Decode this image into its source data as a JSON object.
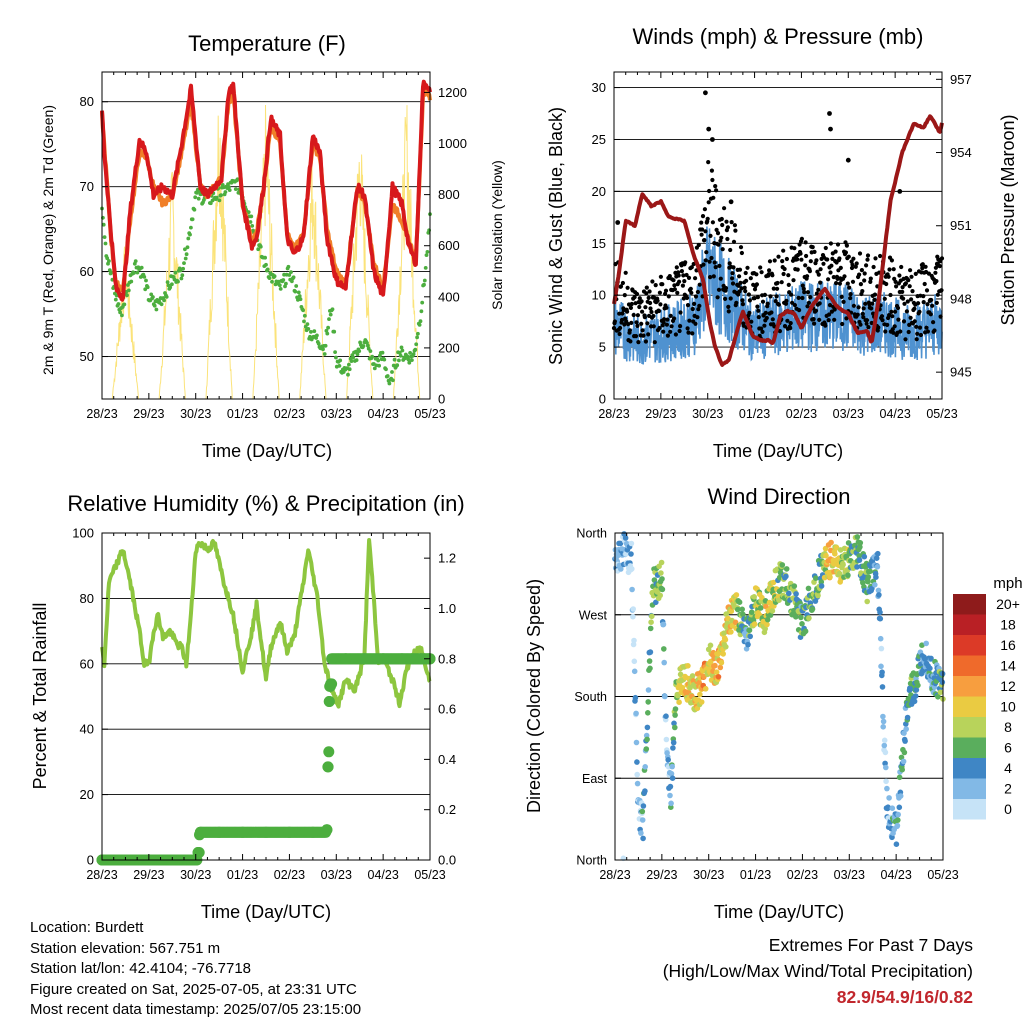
{
  "colors": {
    "temp2m": "#d7191c",
    "temp9m": "#f07f28",
    "dew": "#4cae3e",
    "solar": "#fbe37a",
    "wind": "#4f92d0",
    "gust": "#000000",
    "pressure": "#9b1717",
    "rh": "#8dc63f",
    "precip": "#4cae3e",
    "extremes": "#c1272d"
  },
  "x_ticks": [
    "28/23",
    "29/23",
    "30/23",
    "01/23",
    "02/23",
    "03/23",
    "04/23",
    "05/23"
  ],
  "x_label": "Time (Day/UTC)",
  "info": {
    "location": "Location: Burdett",
    "elevation": "Station elevation: 567.751 m",
    "latlon": "Station lat/lon: 42.4104; -76.7718",
    "created": "Figure created on Sat, 2025-07-05, at 23:31 UTC",
    "recent": "Most recent data timestamp: 2025/07/05 23:15:00"
  },
  "extremes": {
    "title": "Extremes For Past 7 Days",
    "subtitle": "(High/Low/Max Wind/Total Precipitation)",
    "values": "82.9/54.9/16/0.82"
  },
  "chart_data": [
    {
      "type": "line",
      "title": "Temperature (F)",
      "xlabel": "Time (Day/UTC)",
      "ylabel": "2m & 9m T (Red, Orange) & 2m Td (Green)",
      "ylabel_right": "Solar Insolation (Yellow)",
      "ylim": [
        45,
        83.5
      ],
      "yticks": [
        50,
        60,
        70,
        80
      ],
      "ylim_right": [
        0,
        1280
      ],
      "yticks_right": [
        0,
        200,
        400,
        600,
        800,
        1000,
        1200
      ],
      "x_days": [
        0,
        7
      ],
      "grid": true,
      "series": [
        {
          "key": "temp2m",
          "x": [
            0,
            0.05,
            0.2,
            0.3,
            0.45,
            0.6,
            0.8,
            0.95,
            1.1,
            1.3,
            1.5,
            1.7,
            1.9,
            2.1,
            2.25,
            2.4,
            2.55,
            2.7,
            2.8,
            3.0,
            3.2,
            3.3,
            3.45,
            3.6,
            3.8,
            3.95,
            4.1,
            4.3,
            4.5,
            4.65,
            4.8,
            5.0,
            5.2,
            5.3,
            5.45,
            5.6,
            5.8,
            6.0,
            6.2,
            6.4,
            6.55,
            6.7,
            6.8,
            6.85,
            6.95,
            7.0
          ],
          "y": [
            79,
            74,
            64,
            58,
            57,
            67,
            75.5,
            74,
            69,
            70,
            69,
            75,
            81.5,
            70,
            69,
            70,
            71,
            81,
            82,
            68,
            63,
            64,
            70,
            78,
            76,
            64,
            62,
            64,
            76,
            74,
            64,
            59,
            58,
            63,
            70,
            69,
            60,
            57,
            70,
            68,
            63,
            61,
            75,
            82,
            82,
            81
          ]
        },
        {
          "key": "temp9m",
          "x": [
            0,
            0.2,
            0.3,
            0.45,
            0.6,
            0.8,
            0.95,
            1.1,
            1.3,
            1.5,
            1.7,
            1.9,
            2.1,
            2.25,
            2.4,
            2.55,
            2.7,
            2.8,
            3.0,
            3.2,
            3.3,
            3.45,
            3.6,
            3.8,
            3.95,
            4.1,
            4.3,
            4.5,
            4.65,
            4.8,
            5.0,
            5.2,
            5.3,
            5.45,
            5.6,
            5.8,
            6.0,
            6.2,
            6.4,
            6.55,
            6.7,
            6.8,
            6.85,
            6.95,
            7.0
          ],
          "y": [
            78.5,
            63.5,
            58.5,
            58,
            66,
            74,
            73.5,
            70,
            68,
            69,
            74,
            80,
            70,
            69,
            70,
            71,
            80,
            81,
            68,
            63.5,
            64.5,
            70,
            77,
            75.5,
            64.5,
            62.5,
            64.5,
            75,
            73.5,
            65,
            60,
            58.5,
            63,
            69.5,
            68.5,
            61,
            58,
            68,
            66,
            63.5,
            61.5,
            74,
            81,
            81.5,
            80
          ]
        },
        {
          "key": "dew",
          "x": [
            0,
            0.1,
            0.25,
            0.4,
            0.55,
            0.7,
            0.85,
            1.0,
            1.15,
            1.3,
            1.5,
            1.7,
            1.85,
            2.0,
            2.3,
            2.6,
            2.75,
            2.85,
            3.0,
            3.2,
            3.4,
            3.6,
            3.8,
            4.0,
            4.2,
            4.4,
            4.6,
            4.75,
            4.9,
            5.0,
            5.2,
            5.4,
            5.6,
            5.8,
            6.0,
            6.15,
            6.25,
            6.35,
            6.5,
            6.65,
            6.8,
            6.9,
            7.0
          ],
          "y": [
            68,
            62,
            58,
            55,
            58,
            61,
            60,
            57,
            56,
            57,
            59,
            60,
            64,
            69,
            68.5,
            69.5,
            70,
            70.5,
            69,
            66,
            62,
            59.5,
            58,
            60,
            57,
            53,
            52,
            51,
            56,
            49.5,
            48,
            50,
            52,
            49,
            50,
            46.5,
            49,
            50.5,
            50,
            50,
            55,
            60,
            66
          ]
        },
        {
          "key": "solar",
          "x": [
            0,
            0.22,
            0.5,
            0.78,
            1.22,
            1.5,
            1.78,
            2.22,
            2.5,
            2.78,
            3.22,
            3.5,
            3.78,
            4.22,
            4.5,
            4.78,
            5.22,
            5.5,
            5.78,
            6.22,
            6.5,
            6.78,
            7.0
          ],
          "y": [
            0,
            0,
            620,
            0,
            0,
            900,
            0,
            0,
            1250,
            0,
            0,
            1150,
            0,
            0,
            1000,
            0,
            0,
            1100,
            0,
            0,
            1180,
            0,
            0
          ],
          "axis": "right"
        }
      ]
    },
    {
      "type": "scatter",
      "title": "Winds (mph) & Pressure (mb)",
      "xlabel": "Time (Day/UTC)",
      "ylabel": "Sonic Wind & Gust (Blue, Black)",
      "ylabel_right": "Station Pressure (Maroon)",
      "ylim": [
        0,
        31.5
      ],
      "yticks": [
        0,
        5,
        10,
        15,
        20,
        25,
        30
      ],
      "ylim_right": [
        943.9,
        957.3
      ],
      "yticks_right": [
        945,
        948,
        951,
        954,
        957
      ],
      "x_days": [
        0,
        7
      ],
      "grid": true,
      "series": [
        {
          "key": "pressure",
          "x": [
            0,
            0.1,
            0.25,
            0.45,
            0.6,
            0.8,
            1.0,
            1.15,
            1.3,
            1.5,
            1.7,
            1.9,
            2.05,
            2.15,
            2.3,
            2.45,
            2.6,
            2.75,
            2.95,
            3.15,
            3.3,
            3.4,
            3.55,
            3.7,
            3.85,
            4.0,
            4.25,
            4.5,
            4.75,
            5.0,
            5.2,
            5.4,
            5.5,
            5.65,
            5.9,
            6.15,
            6.4,
            6.6,
            6.75,
            6.85,
            6.95,
            7.0
          ],
          "y": [
            947.8,
            949,
            951.2,
            951,
            952.3,
            951.8,
            952,
            951.4,
            951.3,
            951.2,
            949.8,
            948.8,
            947,
            946.1,
            945.3,
            945.5,
            946.5,
            947.5,
            946.5,
            946.3,
            946.3,
            946.2,
            947.3,
            947.5,
            947.4,
            946.8,
            947.8,
            948.4,
            947.7,
            947.4,
            946.6,
            946.7,
            946.2,
            948,
            952,
            954,
            955.2,
            955,
            955.5,
            955.2,
            954.8,
            955.2
          ],
          "axis": "right"
        },
        {
          "key": "gust",
          "marker": "dot",
          "x": [
            0.08,
            1.5,
            1.95,
            2.02,
            2.1,
            2.5,
            4.6,
            4.62,
            5.0,
            6.1,
            6.9
          ],
          "y": [
            17,
            13,
            29.5,
            26,
            25,
            19,
            27.5,
            26,
            23,
            20,
            13
          ]
        }
      ],
      "wind_band": {
        "mean_range": [
          2,
          13
        ],
        "gust_range": [
          4,
          20
        ]
      }
    },
    {
      "type": "line",
      "title": "Relative Humidity (%) & Precipitation (in)",
      "xlabel": "Time (Day/UTC)",
      "ylabel": "Percent & Total Rainfall",
      "ylim": [
        0,
        100
      ],
      "yticks": [
        0,
        20,
        40,
        60,
        80,
        100
      ],
      "ylim_right": [
        0,
        1.3
      ],
      "yticks_right": [
        0.0,
        0.2,
        0.4,
        0.6,
        0.8,
        1.0,
        1.2
      ],
      "x_days": [
        0,
        7
      ],
      "grid": true,
      "series": [
        {
          "key": "rh",
          "x": [
            0,
            0.05,
            0.15,
            0.3,
            0.45,
            0.6,
            0.8,
            0.9,
            1.0,
            1.1,
            1.2,
            1.3,
            1.45,
            1.6,
            1.7,
            1.8,
            1.9,
            2.0,
            2.1,
            2.25,
            2.4,
            2.6,
            2.8,
            3.0,
            3.2,
            3.3,
            3.5,
            3.6,
            3.8,
            3.95,
            4.1,
            4.3,
            4.4,
            4.6,
            4.75,
            4.85,
            4.95,
            5.05,
            5.2,
            5.4,
            5.6,
            5.7,
            5.8,
            5.9,
            6.0,
            6.2,
            6.35,
            6.5,
            6.6,
            6.8,
            6.9,
            7.0
          ],
          "y": [
            65,
            60,
            85,
            90,
            95,
            85,
            70,
            60,
            60,
            70,
            75,
            68,
            70,
            66,
            65,
            60,
            75,
            95,
            97,
            95,
            97,
            85,
            75,
            58,
            70,
            78,
            55,
            65,
            73,
            64,
            68,
            85,
            95,
            80,
            60,
            55,
            50,
            48,
            55,
            52,
            62,
            98,
            80,
            60,
            62,
            55,
            48,
            58,
            62,
            65,
            60,
            55
          ]
        },
        {
          "key": "precip",
          "marker": "dot",
          "x": [
            0,
            0.5,
            1.0,
            1.5,
            2.0,
            2.05,
            2.08,
            2.1,
            2.5,
            3.0,
            3.5,
            4.0,
            4.5,
            4.8,
            4.82,
            4.84,
            4.85,
            4.86,
            4.88,
            4.9,
            5.2,
            5.6,
            6.0,
            6.4,
            6.8,
            7.0
          ],
          "y": [
            0,
            0,
            0,
            0,
            0,
            0.03,
            0.1,
            0.11,
            0.11,
            0.11,
            0.11,
            0.11,
            0.11,
            0.12,
            0.37,
            0.43,
            0.63,
            0.69,
            0.7,
            0.8,
            0.8,
            0.8,
            0.8,
            0.8,
            0.8,
            0.8
          ],
          "axis": "right"
        }
      ]
    },
    {
      "type": "scatter",
      "title": "Wind Direction",
      "xlabel": "Time (Day/UTC)",
      "ylabel": "Direction (Colored By Speed)",
      "ylim": [
        0,
        360
      ],
      "yticks": [
        0,
        90,
        180,
        270,
        360
      ],
      "ytick_labels": [
        "North",
        "East",
        "South",
        "West",
        "North"
      ],
      "x_days": [
        0,
        7
      ],
      "grid": true,
      "color_scale_title": "mph",
      "color_scale_labels": [
        "20+",
        "18",
        "16",
        "14",
        "12",
        "10",
        "8",
        "6",
        "4",
        "2",
        "0"
      ],
      "color_scale_colors": [
        "#8e1b1b",
        "#b92025",
        "#dc3a27",
        "#ef6a2b",
        "#f79e3f",
        "#eacb42",
        "#b8d35b",
        "#5aae5d",
        "#3f86c5",
        "#82b9e6",
        "#c6e3f7"
      ],
      "series": [
        {
          "name": "direction",
          "x": [
            0.05,
            0.2,
            0.35,
            0.5,
            0.6,
            0.8,
            1.0,
            1.1,
            1.2,
            1.3,
            1.5,
            1.7,
            1.9,
            2.0,
            2.2,
            2.4,
            2.6,
            2.8,
            3.0,
            3.2,
            3.4,
            3.6,
            3.8,
            4.0,
            4.2,
            4.4,
            4.6,
            4.8,
            5.0,
            5.2,
            5.4,
            5.6,
            5.8,
            6.0,
            6.2,
            6.3,
            6.4,
            6.6,
            6.8,
            7.0
          ],
          "y": [
            330,
            345,
            330,
            60,
            40,
            300,
            310,
            120,
            70,
            190,
            200,
            180,
            195,
            220,
            210,
            260,
            275,
            250,
            280,
            270,
            300,
            310,
            285,
            260,
            290,
            320,
            330,
            325,
            330,
            340,
            300,
            330,
            60,
            30,
            150,
            180,
            190,
            230,
            200,
            190
          ],
          "speed": [
            3,
            2,
            1,
            2,
            3,
            7,
            6,
            2,
            3,
            8,
            9,
            10,
            12,
            9,
            11,
            10,
            9,
            4,
            8,
            9,
            8,
            6,
            7,
            5,
            6,
            6,
            12,
            8,
            7,
            6,
            5,
            3,
            2,
            4,
            4,
            6,
            5,
            3,
            4,
            6
          ]
        }
      ]
    }
  ]
}
